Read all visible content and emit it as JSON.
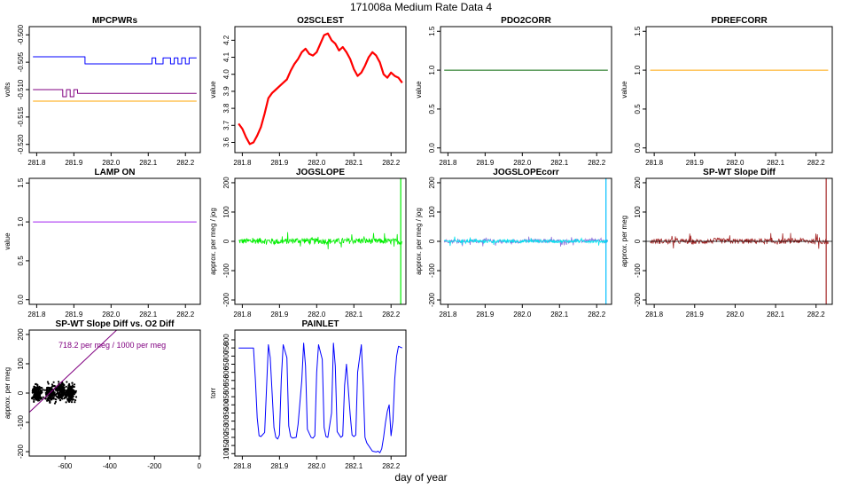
{
  "figure": {
    "suptitle": "171008a   Medium Rate Data 4",
    "xlabel": "day of year"
  },
  "chart_data": [
    {
      "name": "MPCPWRs",
      "type": "line",
      "title": "MPCPWRs",
      "ylabel": "volts",
      "xlim": [
        281.78,
        282.24
      ],
      "ylim": [
        -0.5215,
        -0.4985
      ],
      "xticks": [
        "281.8",
        "281.9",
        "282.0",
        "282.1",
        "282.2"
      ],
      "xtick_values": [
        281.8,
        281.9,
        282.0,
        282.1,
        282.2
      ],
      "yticks": [
        "-0.520",
        "-0.515",
        "-0.510",
        "-0.505",
        "-0.500"
      ],
      "ytick_values": [
        -0.52,
        -0.515,
        -0.51,
        -0.505,
        -0.5
      ],
      "series": [
        {
          "color": "#0000ff",
          "kind": "step",
          "x": [
            281.79,
            281.93,
            281.93,
            282.11,
            282.11,
            282.12,
            282.12,
            282.14,
            282.14,
            282.16,
            282.16,
            282.17,
            282.17,
            282.18,
            282.18,
            282.19,
            282.19,
            282.2,
            282.2,
            282.21,
            282.21,
            282.23
          ],
          "y": [
            -0.504,
            -0.504,
            -0.5053,
            -0.5053,
            -0.5042,
            -0.5042,
            -0.5053,
            -0.5053,
            -0.5042,
            -0.5042,
            -0.5053,
            -0.5053,
            -0.5042,
            -0.5042,
            -0.5053,
            -0.5053,
            -0.5042,
            -0.5042,
            -0.5053,
            -0.5053,
            -0.5042,
            -0.5042
          ]
        },
        {
          "color": "#800080",
          "kind": "step",
          "x": [
            281.79,
            281.87,
            281.87,
            281.88,
            281.88,
            281.89,
            281.89,
            281.9,
            281.9,
            281.91,
            281.91,
            282.23
          ],
          "y": [
            -0.51,
            -0.51,
            -0.5113,
            -0.5113,
            -0.51,
            -0.51,
            -0.5113,
            -0.5113,
            -0.51,
            -0.51,
            -0.5107,
            -0.5107
          ]
        },
        {
          "color": "#ffa500",
          "kind": "line",
          "x": [
            281.79,
            282.23
          ],
          "y": [
            -0.5121,
            -0.5121
          ]
        }
      ]
    },
    {
      "name": "O2SCLEST",
      "type": "line",
      "title": "O2SCLEST",
      "ylabel": "value",
      "xlim": [
        281.78,
        282.24
      ],
      "ylim": [
        3.54,
        4.28
      ],
      "xticks": [
        "281.8",
        "281.9",
        "282.0",
        "282.1",
        "282.2"
      ],
      "xtick_values": [
        281.8,
        281.9,
        282.0,
        282.1,
        282.2
      ],
      "yticks": [
        "3.6",
        "3.7",
        "3.8",
        "3.9",
        "4.0",
        "4.1",
        "4.2"
      ],
      "ytick_values": [
        3.6,
        3.7,
        3.8,
        3.9,
        4.0,
        4.1,
        4.2
      ],
      "series": [
        {
          "color": "#ff0000",
          "kind": "thick",
          "x": [
            281.79,
            281.8,
            281.81,
            281.82,
            281.83,
            281.84,
            281.85,
            281.86,
            281.87,
            281.88,
            281.89,
            281.9,
            281.91,
            281.92,
            281.93,
            281.94,
            281.95,
            281.96,
            281.97,
            281.98,
            281.99,
            282.0,
            282.01,
            282.02,
            282.03,
            282.04,
            282.05,
            282.06,
            282.07,
            282.08,
            282.09,
            282.1,
            282.11,
            282.12,
            282.13,
            282.14,
            282.15,
            282.16,
            282.17,
            282.18,
            282.19,
            282.2,
            282.21,
            282.22,
            282.23
          ],
          "y": [
            3.71,
            3.68,
            3.63,
            3.59,
            3.6,
            3.64,
            3.69,
            3.77,
            3.86,
            3.89,
            3.91,
            3.93,
            3.95,
            3.97,
            4.02,
            4.06,
            4.09,
            4.13,
            4.15,
            4.12,
            4.11,
            4.13,
            4.18,
            4.23,
            4.24,
            4.2,
            4.18,
            4.14,
            4.16,
            4.13,
            4.09,
            4.03,
            3.99,
            4.01,
            4.05,
            4.1,
            4.13,
            4.11,
            4.07,
            4.0,
            3.98,
            4.01,
            3.99,
            3.98,
            3.95
          ]
        }
      ]
    },
    {
      "name": "PDO2CORR",
      "type": "line",
      "title": "PDO2CORR",
      "ylabel": "value",
      "xlim": [
        281.78,
        282.24
      ],
      "ylim": [
        -0.06,
        1.56
      ],
      "xticks": [
        "281.8",
        "281.9",
        "282.0",
        "282.1",
        "282.2"
      ],
      "xtick_values": [
        281.8,
        281.9,
        282.0,
        282.1,
        282.2
      ],
      "yticks": [
        "0.0",
        "0.5",
        "1.0",
        "1.5"
      ],
      "ytick_values": [
        0,
        0.5,
        1.0,
        1.5
      ],
      "series": [
        {
          "color": "#006400",
          "kind": "line",
          "x": [
            281.79,
            282.23
          ],
          "y": [
            1,
            1
          ]
        }
      ]
    },
    {
      "name": "PDREFCORR",
      "type": "line",
      "title": "PDREFCORR",
      "ylabel": "value",
      "xlim": [
        281.78,
        282.24
      ],
      "ylim": [
        -0.06,
        1.56
      ],
      "xticks": [
        "281.8",
        "281.9",
        "282.0",
        "282.1",
        "282.2"
      ],
      "xtick_values": [
        281.8,
        281.9,
        282.0,
        282.1,
        282.2
      ],
      "yticks": [
        "0.0",
        "0.5",
        "1.0",
        "1.5"
      ],
      "ytick_values": [
        0,
        0.5,
        1.0,
        1.5
      ],
      "series": [
        {
          "color": "#ffa500",
          "kind": "line",
          "x": [
            281.79,
            282.23
          ],
          "y": [
            1,
            1
          ]
        }
      ]
    },
    {
      "name": "LAMP-ON",
      "type": "line",
      "title": "LAMP ON",
      "ylabel": "value",
      "xlim": [
        281.78,
        282.24
      ],
      "ylim": [
        -0.06,
        1.56
      ],
      "xticks": [
        "281.8",
        "281.9",
        "282.0",
        "282.1",
        "282.2"
      ],
      "xtick_values": [
        281.8,
        281.9,
        282.0,
        282.1,
        282.2
      ],
      "yticks": [
        "0.0",
        "0.5",
        "1.0",
        "1.5"
      ],
      "ytick_values": [
        0,
        0.5,
        1.0,
        1.5
      ],
      "series": [
        {
          "color": "#a020f0",
          "kind": "line",
          "x": [
            281.79,
            282.23
          ],
          "y": [
            1,
            1
          ]
        }
      ]
    },
    {
      "name": "JOGSLOPE",
      "type": "line",
      "title": "JOGSLOPE",
      "ylabel": "approx. per meg / jog",
      "xlim": [
        281.78,
        282.24
      ],
      "ylim": [
        -215,
        215
      ],
      "xticks": [
        "281.8",
        "281.9",
        "282.0",
        "282.1",
        "282.2"
      ],
      "xtick_values": [
        281.8,
        281.9,
        282.0,
        282.1,
        282.2
      ],
      "yticks": [
        "-200",
        "-100",
        "0",
        "100",
        "200"
      ],
      "ytick_values": [
        -200,
        -100,
        0,
        100,
        200
      ],
      "series": [
        {
          "color": "#00ee00",
          "kind": "noise",
          "x": [
            281.79,
            281.85,
            281.9,
            281.95,
            282.0,
            282.05,
            282.1,
            282.15,
            282.2,
            282.23
          ],
          "y": [
            0,
            2,
            -1,
            3,
            1,
            0,
            2,
            1,
            0,
            -1
          ],
          "amplitude": 20
        },
        {
          "color": "#00ee00",
          "kind": "spike",
          "x": [
            282.226,
            282.226
          ],
          "y": [
            -215,
            215
          ]
        }
      ]
    },
    {
      "name": "JOGSLOPEcorr",
      "type": "line",
      "title": "JOGSLOPEcorr",
      "ylabel": "approx. per meg / jog",
      "xlim": [
        281.78,
        282.24
      ],
      "ylim": [
        -215,
        215
      ],
      "xticks": [
        "281.8",
        "281.9",
        "282.0",
        "282.1",
        "282.2"
      ],
      "xtick_values": [
        281.8,
        281.9,
        282.0,
        282.1,
        282.2
      ],
      "yticks": [
        "-200",
        "-100",
        "0",
        "100",
        "200"
      ],
      "ytick_values": [
        -200,
        -100,
        0,
        100,
        200
      ],
      "series": [
        {
          "color": "#9370db",
          "kind": "noise",
          "x": [
            281.79,
            281.85,
            281.9,
            281.95,
            282.0,
            282.05,
            282.1,
            282.15,
            282.2,
            282.23
          ],
          "y": [
            1,
            0,
            2,
            -1,
            1,
            2,
            0,
            1,
            2,
            0
          ],
          "amplitude": 12
        },
        {
          "color": "#00e5ee",
          "kind": "noise",
          "x": [
            281.79,
            281.85,
            281.9,
            281.95,
            282.0,
            282.05,
            282.1,
            282.15,
            282.2,
            282.23
          ],
          "y": [
            0,
            1,
            0,
            1,
            0,
            1,
            0,
            1,
            0,
            0
          ],
          "amplitude": 10
        },
        {
          "color": "#00bfff",
          "kind": "spike",
          "x": [
            282.225,
            282.225
          ],
          "y": [
            -215,
            215
          ]
        }
      ]
    },
    {
      "name": "SP-WT-Slope-Diff",
      "type": "line",
      "title": "SP-WT Slope Diff",
      "ylabel": "approx. per meg",
      "xlim": [
        281.78,
        282.24
      ],
      "ylim": [
        -215,
        215
      ],
      "xticks": [
        "281.8",
        "281.9",
        "282.0",
        "282.1",
        "282.2"
      ],
      "xtick_values": [
        281.8,
        281.9,
        282.0,
        282.1,
        282.2
      ],
      "yticks": [
        "-200",
        "-100",
        "0",
        "100",
        "200"
      ],
      "ytick_values": [
        -200,
        -100,
        0,
        100,
        200
      ],
      "series": [
        {
          "color": "#a52a2a",
          "kind": "noise",
          "x": [
            281.79,
            281.85,
            281.9,
            281.95,
            282.0,
            282.05,
            282.1,
            282.15,
            282.2,
            282.23
          ],
          "y": [
            0,
            1,
            -2,
            2,
            0,
            1,
            -1,
            2,
            0,
            -1
          ],
          "amplitude": 18
        },
        {
          "color": "#a52a2a",
          "kind": "spike",
          "x": [
            282.225,
            282.225
          ],
          "y": [
            -215,
            215
          ]
        }
      ],
      "hline": 0
    },
    {
      "name": "SP-WT-Slope-Diff-vs-O2-Diff",
      "type": "scatter",
      "title": "SP-WT Slope Diff vs. O2 Diff",
      "ylabel": "approx. per meg",
      "xlim": [
        -760,
        5
      ],
      "ylim": [
        -215,
        215
      ],
      "xticks": [
        "-600",
        "-400",
        "-200",
        "0"
      ],
      "xtick_values": [
        -600,
        -400,
        -200,
        0
      ],
      "yticks": [
        "-200",
        "-100",
        "0",
        "100",
        "200"
      ],
      "ytick_values": [
        -200,
        -100,
        0,
        100,
        200
      ],
      "annotation": "718.2 per meg / 1000 per meg",
      "clusters": [
        {
          "x": -725,
          "y": 0
        },
        {
          "x": -665,
          "y": 0
        },
        {
          "x": -615,
          "y": 5
        },
        {
          "x": -575,
          "y": 0
        }
      ],
      "fit_line": {
        "slope": 0.7182,
        "intercept": 480,
        "color": "#800080"
      }
    },
    {
      "name": "PAINLET",
      "type": "line",
      "title": "PAINLET",
      "ylabel": "torr",
      "xlim": [
        281.78,
        282.24
      ],
      "ylim": [
        85,
        860
      ],
      "xticks": [
        "281.8",
        "281.9",
        "282.0",
        "282.1",
        "282.2"
      ],
      "xtick_values": [
        281.8,
        281.9,
        282.0,
        282.1,
        282.2
      ],
      "yticks": [
        "100",
        "150",
        "200",
        "250",
        "300",
        "350",
        "400",
        "450",
        "500",
        "550",
        "600",
        "650",
        "700",
        "750",
        "800"
      ],
      "ytick_values": [
        100,
        150,
        200,
        250,
        300,
        350,
        400,
        450,
        500,
        550,
        600,
        650,
        700,
        750,
        800
      ],
      "series": [
        {
          "color": "#0000ff",
          "kind": "line",
          "x": [
            281.79,
            281.83,
            281.835,
            281.84,
            281.845,
            281.85,
            281.86,
            281.865,
            281.87,
            281.875,
            281.885,
            281.89,
            281.895,
            281.9,
            281.905,
            281.91,
            281.92,
            281.925,
            281.93,
            281.935,
            281.945,
            281.95,
            281.96,
            281.965,
            281.97,
            281.975,
            281.985,
            281.99,
            281.995,
            282.0,
            282.005,
            282.015,
            282.02,
            282.025,
            282.03,
            282.04,
            282.045,
            282.05,
            282.055,
            282.065,
            282.07,
            282.075,
            282.08,
            282.09,
            282.095,
            282.1,
            282.105,
            282.11,
            282.12,
            282.125,
            282.13,
            282.135,
            282.15,
            282.16,
            282.165,
            282.17,
            282.175,
            282.18,
            282.185,
            282.19,
            282.195,
            282.2,
            282.205,
            282.21,
            282.215,
            282.22,
            282.23
          ],
          "y": [
            750,
            750,
            560,
            320,
            210,
            205,
            230,
            500,
            770,
            690,
            260,
            200,
            190,
            215,
            560,
            770,
            690,
            270,
            205,
            195,
            200,
            280,
            550,
            780,
            640,
            250,
            200,
            195,
            210,
            600,
            770,
            680,
            260,
            205,
            200,
            350,
            780,
            640,
            235,
            200,
            210,
            520,
            650,
            340,
            215,
            205,
            215,
            600,
            770,
            520,
            200,
            165,
            115,
            110,
            115,
            105,
            130,
            200,
            290,
            360,
            400,
            210,
            300,
            560,
            700,
            760,
            750
          ]
        }
      ]
    }
  ]
}
